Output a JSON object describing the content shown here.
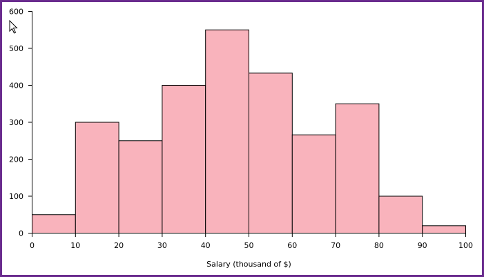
{
  "chart_data": {
    "type": "bar",
    "subtype": "histogram",
    "bins": [
      {
        "x0": 0,
        "x1": 10,
        "value": 50
      },
      {
        "x0": 10,
        "x1": 20,
        "value": 300
      },
      {
        "x0": 20,
        "x1": 30,
        "value": 250
      },
      {
        "x0": 30,
        "x1": 40,
        "value": 400
      },
      {
        "x0": 40,
        "x1": 50,
        "value": 550
      },
      {
        "x0": 50,
        "x1": 60,
        "value": 433
      },
      {
        "x0": 60,
        "x1": 70,
        "value": 266
      },
      {
        "x0": 70,
        "x1": 80,
        "value": 350
      },
      {
        "x0": 80,
        "x1": 90,
        "value": 100
      },
      {
        "x0": 90,
        "x1": 100,
        "value": 20
      }
    ],
    "xlabel": "Salary (thousand of $)",
    "ylabel": "",
    "xlim": [
      0,
      100
    ],
    "ylim": [
      0,
      600
    ],
    "xticks": [
      "0",
      "10",
      "20",
      "30",
      "40",
      "50",
      "60",
      "70",
      "80",
      "90",
      "100"
    ],
    "yticks": [
      "0",
      "100",
      "200",
      "300",
      "400",
      "500",
      "600"
    ],
    "grid": false,
    "bar_color": "#f9b3bc",
    "edge_color": "#000000"
  },
  "frame_color": "#6a2c8e",
  "cursor_icon": "arrow-pointer-icon"
}
